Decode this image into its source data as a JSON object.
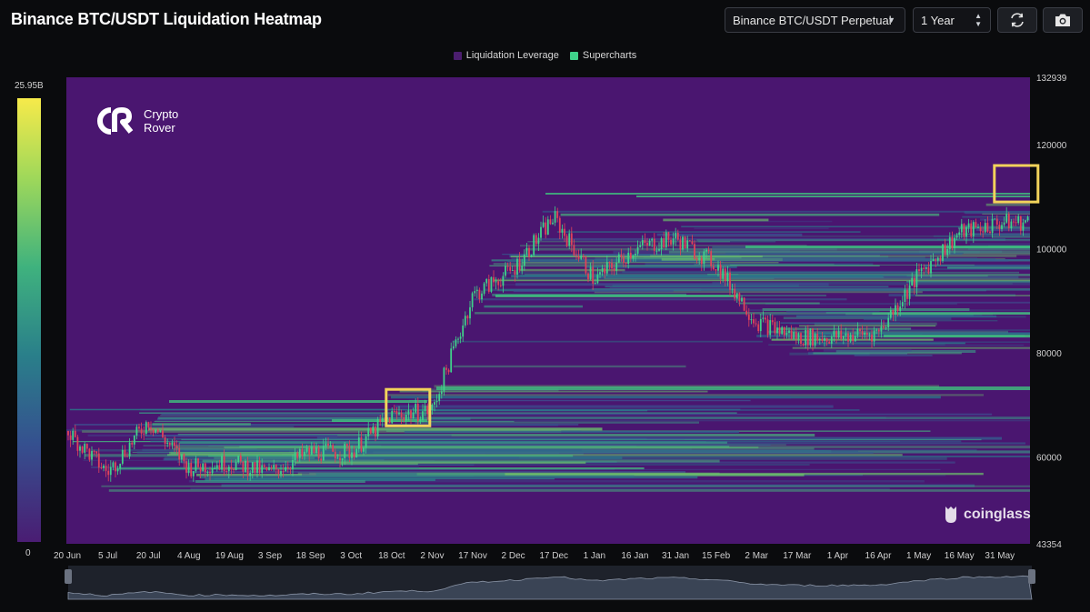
{
  "header": {
    "title": "Binance BTC/USDT Liquidation Heatmap",
    "pair_select": "Binance BTC/USDT Perpetual",
    "range_select": "1 Year",
    "refresh_icon": "refresh-icon",
    "camera_icon": "camera-icon"
  },
  "legend": [
    {
      "label": "Liquidation Leverage",
      "color": "#4b1e6e"
    },
    {
      "label": "Supercharts",
      "color": "#3fd28a"
    }
  ],
  "colorscale": {
    "max_label": "25.95B",
    "min_label": "0"
  },
  "watermarks": {
    "brand_line1": "Crypto",
    "brand_line2": "Rover",
    "source": "coinglass"
  },
  "chart_data": {
    "type": "heatmap",
    "title": "Binance BTC/USDT Liquidation Heatmap",
    "x_tick_labels": [
      "20 Jun",
      "5 Jul",
      "20 Jul",
      "4 Aug",
      "19 Aug",
      "3 Sep",
      "18 Sep",
      "3 Oct",
      "18 Oct",
      "2 Nov",
      "17 Nov",
      "2 Dec",
      "17 Dec",
      "1 Jan",
      "16 Jan",
      "31 Jan",
      "15 Feb",
      "2 Mar",
      "17 Mar",
      "1 Apr",
      "16 Apr",
      "1 May",
      "16 May",
      "31 May"
    ],
    "y_ticks": [
      132939,
      120000,
      100000,
      80000,
      60000,
      43354
    ],
    "ylim": [
      43354,
      132939
    ],
    "y_axis_position": "right",
    "price_series_approx": [
      {
        "date": "20 Jun",
        "close": 65000
      },
      {
        "date": "5 Jul",
        "close": 57000
      },
      {
        "date": "20 Jul",
        "close": 67000
      },
      {
        "date": "4 Aug",
        "close": 58000
      },
      {
        "date": "19 Aug",
        "close": 59000
      },
      {
        "date": "3 Sep",
        "close": 57000
      },
      {
        "date": "18 Sep",
        "close": 61000
      },
      {
        "date": "3 Oct",
        "close": 61000
      },
      {
        "date": "18 Oct",
        "close": 68000
      },
      {
        "date": "2 Nov",
        "close": 69000
      },
      {
        "date": "17 Nov",
        "close": 91000
      },
      {
        "date": "2 Dec",
        "close": 96000
      },
      {
        "date": "17 Dec",
        "close": 106000
      },
      {
        "date": "1 Jan",
        "close": 94000
      },
      {
        "date": "16 Jan",
        "close": 100000
      },
      {
        "date": "31 Jan",
        "close": 102000
      },
      {
        "date": "15 Feb",
        "close": 97000
      },
      {
        "date": "2 Mar",
        "close": 86000
      },
      {
        "date": "17 Mar",
        "close": 83000
      },
      {
        "date": "1 Apr",
        "close": 83000
      },
      {
        "date": "16 Apr",
        "close": 84000
      },
      {
        "date": "1 May",
        "close": 95000
      },
      {
        "date": "16 May",
        "close": 103000
      },
      {
        "date": "31 May",
        "close": 105000
      }
    ],
    "highlight_boxes": [
      {
        "date": "18 Oct",
        "price_low": 66000,
        "price_high": 73000,
        "color": "#f2d35b"
      },
      {
        "date": "31 May",
        "price_low": 109000,
        "price_high": 116000,
        "color": "#f2d35b"
      }
    ]
  }
}
